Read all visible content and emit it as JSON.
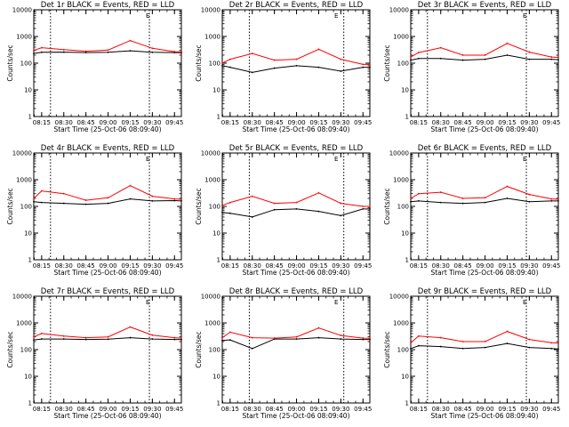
{
  "chart_data": [
    {
      "type": "line",
      "title": "Det 1r BLACK = Events, RED = LLD",
      "xlabel": "Start Time (25-Oct-06 08:09:40)",
      "ylabel": "Counts/sec",
      "x_ticks": [
        "08:15",
        "08:30",
        "08:45",
        "09:00",
        "09:15",
        "09:30",
        "09:45"
      ],
      "y_ticks": [
        "1",
        "10",
        "100",
        "1000",
        "10000"
      ],
      "yscale": "log",
      "ylim": [
        1,
        10000
      ],
      "xlim": [
        "08:09:40",
        "09:49:40"
      ],
      "vlines": [
        "08:21",
        "09:28"
      ],
      "marker": "E",
      "series": [
        {
          "name": "Events",
          "color": "#000000",
          "x": [
            "08:09:40",
            "08:15",
            "08:30",
            "08:45",
            "09:00",
            "09:15",
            "09:30",
            "09:45",
            "09:49:40"
          ],
          "values": [
            230,
            255,
            260,
            250,
            255,
            290,
            255,
            250,
            245
          ]
        },
        {
          "name": "LLD",
          "color": "#ff0000",
          "x": [
            "08:09:40",
            "08:15",
            "08:30",
            "08:45",
            "09:00",
            "09:15",
            "09:30",
            "09:45",
            "09:49:40"
          ],
          "values": [
            300,
            380,
            320,
            280,
            310,
            700,
            360,
            270,
            265
          ]
        }
      ]
    },
    {
      "type": "line",
      "title": "Det 2r BLACK = Events, RED = LLD",
      "xlabel": "Start Time (25-Oct-06 08:09:40)",
      "ylabel": "Counts/sec",
      "x_ticks": [
        "08:15",
        "08:30",
        "08:45",
        "09:00",
        "09:15",
        "09:30",
        "09:45"
      ],
      "y_ticks": [
        "1",
        "10",
        "100",
        "1000",
        "10000"
      ],
      "yscale": "log",
      "ylim": [
        1,
        10000
      ],
      "xlim": [
        "08:09:40",
        "09:49:40"
      ],
      "vlines": [
        "08:28",
        "09:32"
      ],
      "marker": "E",
      "series": [
        {
          "name": "Events",
          "color": "#000000",
          "x": [
            "08:09:40",
            "08:15",
            "08:30",
            "08:45",
            "09:00",
            "09:15",
            "09:30",
            "09:45",
            "09:49:40"
          ],
          "values": [
            80,
            70,
            45,
            65,
            80,
            70,
            50,
            70,
            70
          ]
        },
        {
          "name": "LLD",
          "color": "#ff0000",
          "x": [
            "08:09:40",
            "08:15",
            "08:30",
            "08:45",
            "09:00",
            "09:15",
            "09:30",
            "09:45",
            "09:49:40"
          ],
          "values": [
            100,
            140,
            230,
            130,
            140,
            330,
            140,
            90,
            90
          ]
        }
      ]
    },
    {
      "type": "line",
      "title": "Det 3r BLACK = Events, RED = LLD",
      "xlabel": "Start Time (25-Oct-06 08:09:40)",
      "ylabel": "Counts/sec",
      "x_ticks": [
        "08:15",
        "08:30",
        "08:45",
        "09:00",
        "09:15",
        "09:30",
        "09:45"
      ],
      "y_ticks": [
        "1",
        "10",
        "100",
        "1000",
        "10000"
      ],
      "yscale": "log",
      "ylim": [
        1,
        10000
      ],
      "xlim": [
        "08:09:40",
        "09:49:40"
      ],
      "vlines": [
        "08:21",
        "09:28"
      ],
      "marker": "E",
      "series": [
        {
          "name": "Events",
          "color": "#000000",
          "x": [
            "08:09:40",
            "08:15",
            "08:30",
            "08:45",
            "09:00",
            "09:15",
            "09:30",
            "09:45",
            "09:49:40"
          ],
          "values": [
            130,
            150,
            150,
            130,
            140,
            200,
            140,
            140,
            135
          ]
        },
        {
          "name": "LLD",
          "color": "#ff0000",
          "x": [
            "08:09:40",
            "08:15",
            "08:30",
            "08:45",
            "09:00",
            "09:15",
            "09:30",
            "09:45",
            "09:49:40"
          ],
          "values": [
            170,
            250,
            380,
            200,
            200,
            550,
            260,
            170,
            165
          ]
        }
      ]
    },
    {
      "type": "line",
      "title": "Det 4r BLACK = Events, RED = LLD",
      "xlabel": "Start Time (25-Oct-06 08:09:40)",
      "ylabel": "Counts/sec",
      "x_ticks": [
        "08:15",
        "08:30",
        "08:45",
        "09:00",
        "09:15",
        "09:30",
        "09:45"
      ],
      "y_ticks": [
        "1",
        "10",
        "100",
        "1000",
        "10000"
      ],
      "yscale": "log",
      "ylim": [
        1,
        10000
      ],
      "xlim": [
        "08:09:40",
        "09:49:40"
      ],
      "vlines": [
        "08:21",
        "09:28"
      ],
      "marker": "E",
      "series": [
        {
          "name": "Events",
          "color": "#000000",
          "x": [
            "08:09:40",
            "08:15",
            "08:30",
            "08:45",
            "09:00",
            "09:15",
            "09:30",
            "09:45",
            "09:49:40"
          ],
          "values": [
            150,
            140,
            130,
            120,
            130,
            190,
            160,
            165,
            160
          ]
        },
        {
          "name": "LLD",
          "color": "#ff0000",
          "x": [
            "08:09:40",
            "08:15",
            "08:30",
            "08:45",
            "09:00",
            "09:15",
            "09:30",
            "09:45",
            "09:49:40"
          ],
          "values": [
            200,
            380,
            300,
            170,
            210,
            600,
            240,
            190,
            185
          ]
        }
      ]
    },
    {
      "type": "line",
      "title": "Det 5r BLACK = Events, RED = LLD",
      "xlabel": "Start Time (25-Oct-06 08:09:40)",
      "ylabel": "Counts/sec",
      "x_ticks": [
        "08:15",
        "08:30",
        "08:45",
        "09:00",
        "09:15",
        "09:30",
        "09:45"
      ],
      "y_ticks": [
        "1",
        "10",
        "100",
        "1000",
        "10000"
      ],
      "yscale": "log",
      "ylim": [
        1,
        10000
      ],
      "xlim": [
        "08:09:40",
        "09:49:40"
      ],
      "vlines": [
        "08:28",
        "09:32"
      ],
      "marker": "E",
      "series": [
        {
          "name": "Events",
          "color": "#000000",
          "x": [
            "08:09:40",
            "08:15",
            "08:30",
            "08:45",
            "09:00",
            "09:15",
            "09:30",
            "09:45",
            "09:49:40"
          ],
          "values": [
            60,
            55,
            40,
            75,
            80,
            65,
            45,
            80,
            80
          ]
        },
        {
          "name": "LLD",
          "color": "#ff0000",
          "x": [
            "08:09:40",
            "08:15",
            "08:30",
            "08:45",
            "09:00",
            "09:15",
            "09:30",
            "09:45",
            "09:49:40"
          ],
          "values": [
            110,
            140,
            240,
            130,
            140,
            320,
            130,
            100,
            100
          ]
        }
      ]
    },
    {
      "type": "line",
      "title": "Det 6r BLACK = Events, RED = LLD",
      "xlabel": "Start Time (25-Oct-06 08:09:40)",
      "ylabel": "Counts/sec",
      "x_ticks": [
        "08:15",
        "08:30",
        "08:45",
        "09:00",
        "09:15",
        "09:30",
        "09:45"
      ],
      "y_ticks": [
        "1",
        "10",
        "100",
        "1000",
        "10000"
      ],
      "yscale": "log",
      "ylim": [
        1,
        10000
      ],
      "xlim": [
        "08:09:40",
        "09:49:40"
      ],
      "vlines": [
        "08:21",
        "09:28"
      ],
      "marker": "E",
      "series": [
        {
          "name": "Events",
          "color": "#000000",
          "x": [
            "08:09:40",
            "08:15",
            "08:30",
            "08:45",
            "09:00",
            "09:15",
            "09:30",
            "09:45",
            "09:49:40"
          ],
          "values": [
            150,
            160,
            140,
            130,
            140,
            200,
            150,
            160,
            160
          ]
        },
        {
          "name": "LLD",
          "color": "#ff0000",
          "x": [
            "08:09:40",
            "08:15",
            "08:30",
            "08:45",
            "09:00",
            "09:15",
            "09:30",
            "09:45",
            "09:49:40"
          ],
          "values": [
            200,
            300,
            340,
            200,
            210,
            560,
            280,
            190,
            185
          ]
        }
      ]
    },
    {
      "type": "line",
      "title": "Det 7r BLACK = Events, RED = LLD",
      "xlabel": "Start Time (25-Oct-06 08:09:40)",
      "ylabel": "Counts/sec",
      "x_ticks": [
        "08:15",
        "08:30",
        "08:45",
        "09:00",
        "09:15",
        "09:30",
        "09:45"
      ],
      "y_ticks": [
        "1",
        "10",
        "100",
        "1000",
        "10000"
      ],
      "yscale": "log",
      "ylim": [
        1,
        10000
      ],
      "xlim": [
        "08:09:40",
        "09:49:40"
      ],
      "vlines": [
        "08:21",
        "09:28"
      ],
      "marker": "E",
      "series": [
        {
          "name": "Events",
          "color": "#000000",
          "x": [
            "08:09:40",
            "08:15",
            "08:30",
            "08:45",
            "09:00",
            "09:15",
            "09:30",
            "09:45",
            "09:49:40"
          ],
          "values": [
            230,
            250,
            250,
            240,
            245,
            280,
            250,
            240,
            240
          ]
        },
        {
          "name": "LLD",
          "color": "#ff0000",
          "x": [
            "08:09:40",
            "08:15",
            "08:30",
            "08:45",
            "09:00",
            "09:15",
            "09:30",
            "09:45",
            "09:49:40"
          ],
          "values": [
            300,
            400,
            320,
            280,
            300,
            700,
            350,
            280,
            270
          ]
        }
      ]
    },
    {
      "type": "line",
      "title": "Det 8r BLACK = Events, RED = LLD",
      "xlabel": "Start Time (25-Oct-06 08:09:40)",
      "ylabel": "Counts/sec",
      "x_ticks": [
        "08:15",
        "08:30",
        "08:45",
        "09:00",
        "09:15",
        "09:30",
        "09:45"
      ],
      "y_ticks": [
        "1",
        "10",
        "100",
        "1000",
        "10000"
      ],
      "yscale": "log",
      "ylim": [
        1,
        10000
      ],
      "xlim": [
        "08:09:40",
        "09:49:40"
      ],
      "vlines": [
        "08:28",
        "09:32"
      ],
      "marker": "E",
      "series": [
        {
          "name": "Events",
          "color": "#000000",
          "x": [
            "08:09:40",
            "08:15",
            "08:30",
            "08:45",
            "09:00",
            "09:15",
            "09:30",
            "09:45",
            "09:49:40"
          ],
          "values": [
            220,
            230,
            110,
            250,
            250,
            280,
            250,
            240,
            240
          ]
        },
        {
          "name": "LLD",
          "color": "#ff0000",
          "x": [
            "08:09:40",
            "08:15",
            "08:30",
            "08:45",
            "09:00",
            "09:15",
            "09:30",
            "09:45",
            "09:49:40"
          ],
          "values": [
            280,
            450,
            280,
            270,
            300,
            650,
            340,
            270,
            265
          ]
        }
      ]
    },
    {
      "type": "line",
      "title": "Det 9r BLACK = Events, RED = LLD",
      "xlabel": "Start Time (25-Oct-06 08:09:40)",
      "ylabel": "Counts/sec",
      "x_ticks": [
        "08:15",
        "08:30",
        "08:45",
        "09:00",
        "09:15",
        "09:30",
        "09:45"
      ],
      "y_ticks": [
        "1",
        "10",
        "100",
        "1000",
        "10000"
      ],
      "yscale": "log",
      "ylim": [
        1,
        10000
      ],
      "xlim": [
        "08:09:40",
        "09:49:40"
      ],
      "vlines": [
        "08:21",
        "09:28"
      ],
      "marker": "E",
      "series": [
        {
          "name": "Events",
          "color": "#000000",
          "x": [
            "08:09:40",
            "08:15",
            "08:30",
            "08:45",
            "09:00",
            "09:15",
            "09:30",
            "09:45",
            "09:49:40"
          ],
          "values": [
            110,
            140,
            130,
            110,
            120,
            170,
            120,
            110,
            105
          ]
        },
        {
          "name": "LLD",
          "color": "#ff0000",
          "x": [
            "08:09:40",
            "08:15",
            "08:30",
            "08:45",
            "09:00",
            "09:15",
            "09:30",
            "09:45",
            "09:49:40"
          ],
          "values": [
            180,
            320,
            280,
            200,
            200,
            480,
            240,
            180,
            175
          ]
        }
      ]
    }
  ]
}
